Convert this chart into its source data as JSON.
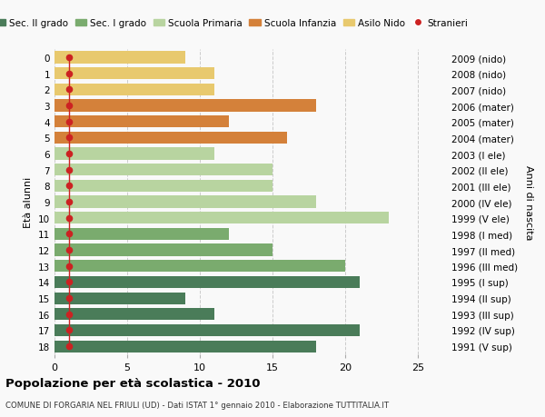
{
  "ages": [
    18,
    17,
    16,
    15,
    14,
    13,
    12,
    11,
    10,
    9,
    8,
    7,
    6,
    5,
    4,
    3,
    2,
    1,
    0
  ],
  "years": [
    "1991 (V sup)",
    "1992 (IV sup)",
    "1993 (III sup)",
    "1994 (II sup)",
    "1995 (I sup)",
    "1996 (III med)",
    "1997 (II med)",
    "1998 (I med)",
    "1999 (V ele)",
    "2000 (IV ele)",
    "2001 (III ele)",
    "2002 (II ele)",
    "2003 (I ele)",
    "2004 (mater)",
    "2005 (mater)",
    "2006 (mater)",
    "2007 (nido)",
    "2008 (nido)",
    "2009 (nido)"
  ],
  "bar_values": [
    18,
    21,
    11,
    9,
    21,
    20,
    15,
    12,
    23,
    18,
    15,
    15,
    11,
    16,
    12,
    18,
    11,
    11,
    9
  ],
  "bar_colors": [
    "#4a7c59",
    "#4a7c59",
    "#4a7c59",
    "#4a7c59",
    "#4a7c59",
    "#7aab6e",
    "#7aab6e",
    "#7aab6e",
    "#b8d4a0",
    "#b8d4a0",
    "#b8d4a0",
    "#b8d4a0",
    "#b8d4a0",
    "#d4813a",
    "#d4813a",
    "#d4813a",
    "#e8c96e",
    "#e8c96e",
    "#e8c96e"
  ],
  "stranieri_x": [
    1,
    1,
    1,
    1,
    1,
    1,
    1,
    1,
    1,
    1,
    1,
    1,
    1,
    1,
    1,
    1,
    1,
    1,
    1
  ],
  "legend_labels": [
    "Sec. II grado",
    "Sec. I grado",
    "Scuola Primaria",
    "Scuola Infanzia",
    "Asilo Nido",
    "Stranieri"
  ],
  "legend_colors": [
    "#4a7c59",
    "#7aab6e",
    "#b8d4a0",
    "#d4813a",
    "#e8c96e",
    "#cc2222"
  ],
  "title": "Popolazione per età scolastica - 2010",
  "subtitle": "COMUNE DI FORGARIA NEL FRIULI (UD) - Dati ISTAT 1° gennaio 2010 - Elaborazione TUTTITALIA.IT",
  "ylabel_left": "Età alunni",
  "ylabel_right": "Anni di nascita",
  "xlim": [
    0,
    27
  ],
  "bg_color": "#f9f9f9",
  "grid_color": "#cccccc"
}
